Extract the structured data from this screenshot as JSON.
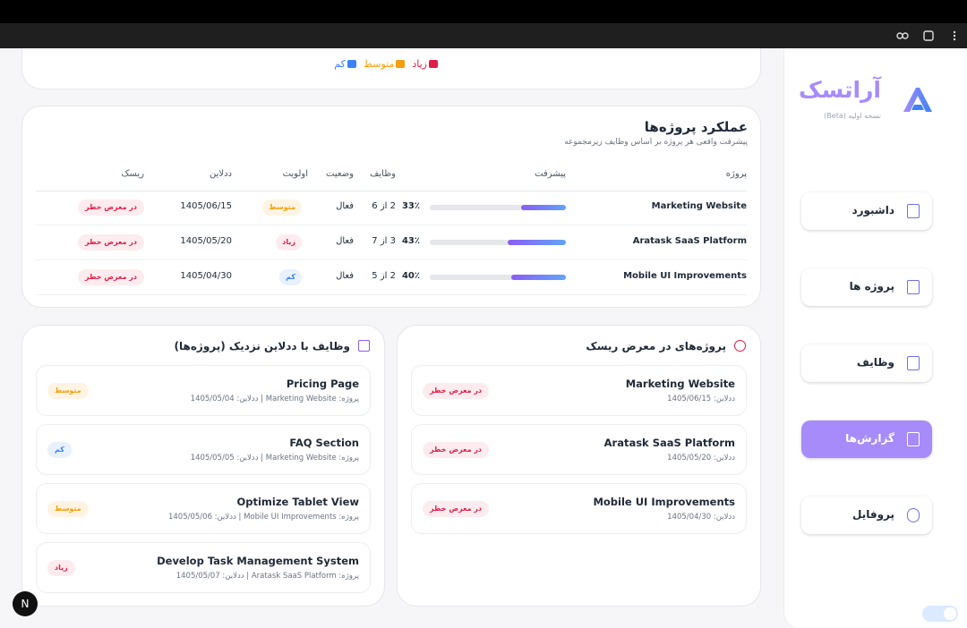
{
  "browser": {
    "title": "آراتسک"
  },
  "sidebar": {
    "logo": "آراتسک",
    "version": "نسخه اولیه (Beta)",
    "nav": [
      "داشبورد",
      "پروژه ها",
      "وظایف",
      "گزارش‌ها",
      "پروفایل"
    ],
    "active": 3
  },
  "legend": [
    {
      "name": "زیاد",
      "color": "#e11d48",
      "bg": "#fdecef"
    },
    {
      "name": "متوسط",
      "color": "#f59e0b",
      "bg": "#fff4e3"
    },
    {
      "name": "کم",
      "color": "#3b82f6",
      "bg": "#e8f1fd"
    }
  ],
  "projects_table": {
    "title": "عملکرد پروژه‌ها",
    "subtitle": "پیشرفت واقعی هر پروژه بر اساس وظایف زیرمجموعه",
    "headers": [
      "پروژه",
      "پیشرفت",
      "وظایف",
      "وضعیت",
      "اولویت",
      "ددلاین",
      "ریسک"
    ],
    "rows": [
      {
        "name": "Marketing Website",
        "progress": 33,
        "progress_label": "33٪",
        "tasks": "2 از 6",
        "status": "فعال",
        "priority": "متوسط",
        "deadline": "1405/06/15",
        "risk": "در معرض خطر"
      },
      {
        "name": "Aratask SaaS Platform",
        "progress": 43,
        "progress_label": "43٪",
        "tasks": "3 از 7",
        "status": "فعال",
        "priority": "زیاد",
        "deadline": "1405/05/20",
        "risk": "در معرض خطر"
      },
      {
        "name": "Mobile UI Improvements",
        "progress": 40,
        "progress_label": "40٪",
        "tasks": "2 از 5",
        "status": "فعال",
        "priority": "کم",
        "deadline": "1405/04/30",
        "risk": "در معرض خطر"
      }
    ]
  },
  "deadline_tasks": {
    "title": "وظایف با ددلاین نزدیک (پروژه‌ها)",
    "items": [
      {
        "title": "Pricing Page",
        "meta": "پروژه: Marketing Website | ددلاین: 1405/05/04",
        "priority": "متوسط"
      },
      {
        "title": "FAQ Section",
        "meta": "پروژه: Marketing Website | ددلاین: 1405/05/05",
        "priority": "کم"
      },
      {
        "title": "Optimize Tablet View",
        "meta": "پروژه: Mobile UI Improvements | ددلاین: 1405/05/06",
        "priority": "متوسط"
      },
      {
        "title": "Develop Task Management System",
        "meta": "پروژه: Aratask SaaS Platform | ددلاین: 1405/05/07",
        "priority": "زیاد"
      }
    ]
  },
  "risk_projects": {
    "title": "پروژه‌های در معرض ریسک",
    "items": [
      {
        "name": "Marketing Website",
        "deadline": "ددلاین: 1405/06/15",
        "risk": "در معرض خطر"
      },
      {
        "name": "Aratask SaaS Platform",
        "deadline": "ددلاین: 1405/05/20",
        "risk": "در معرض خطر"
      },
      {
        "name": "Mobile UI Improvements",
        "deadline": "ددلاین: 1405/04/30",
        "risk": "در معرض خطر"
      }
    ]
  },
  "dev_badge": "N"
}
